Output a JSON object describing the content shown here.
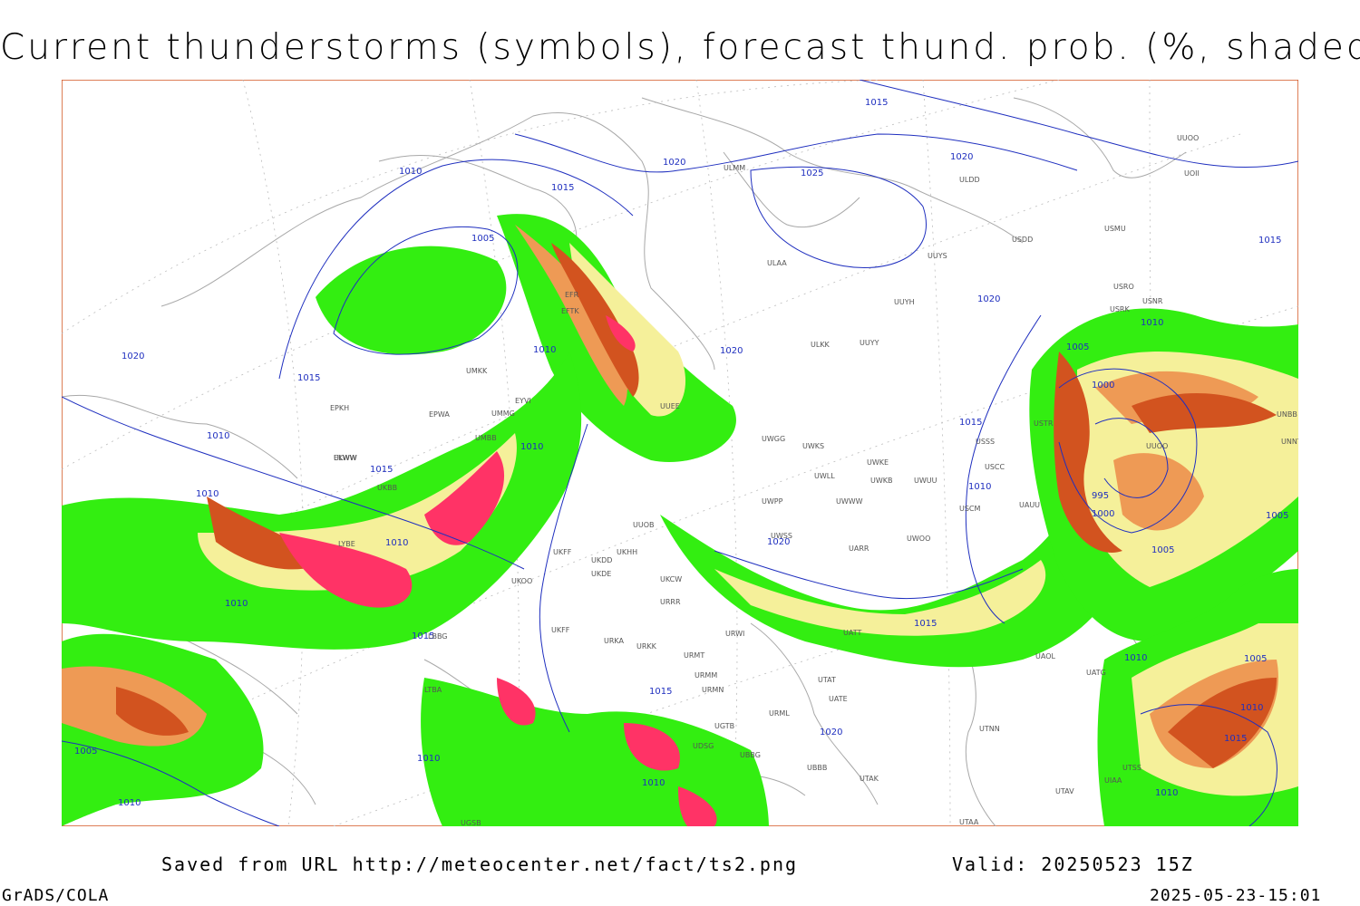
{
  "title": "Current thunderstorms (symbols), forecast thund. prob. (%, shaded)",
  "footer": {
    "saved": "Saved from URL http://meteocenter.net/fact/ts2.png",
    "valid": "Valid: 20250523 15Z",
    "credit": "GrADS/COLA",
    "timestamp": "2025-05-23-15:01"
  },
  "colors": {
    "isobar": "#1f2fbf",
    "coast": "#a8a8a8",
    "prob_low": "#33ee11",
    "prob_mid": "#f5f09a",
    "prob_high": "#ee9a55",
    "prob_higher": "#d2531f",
    "prob_max": "#ff3366"
  },
  "isobars": [
    {
      "label": "1015"
    },
    {
      "label": "1020"
    },
    {
      "label": "1025"
    },
    {
      "label": "1010"
    },
    {
      "label": "1005"
    },
    {
      "label": "1000"
    },
    {
      "label": "995"
    }
  ],
  "isobar_labels": [
    "1015",
    "1020",
    "1020",
    "1025",
    "1010",
    "1015",
    "1005",
    "1020",
    "1015",
    "1010",
    "1020",
    "1015",
    "1015",
    "1010",
    "1010",
    "1010",
    "1015",
    "1015",
    "1010",
    "1005",
    "1000",
    "995",
    "1000",
    "1005",
    "1010",
    "1015",
    "1020",
    "1010",
    "1005",
    "1010",
    "1010",
    "1010",
    "1010",
    "1015",
    "1005",
    "1005",
    "1010",
    "1015",
    "1010",
    "1020",
    "1015"
  ],
  "stations": [
    "EFR",
    "EFTK",
    "ULMM",
    "ULAA",
    "ULDD",
    "USDD",
    "UUYS",
    "UUYH",
    "USMU",
    "USRO",
    "USRK",
    "USNR",
    "UUOO",
    "UOII",
    "ULKK",
    "UUYY",
    "UMKK",
    "EYVI",
    "UMMG",
    "EPWA",
    "UMBB",
    "ULWW",
    "EPKH",
    "EKWW",
    "UKBB",
    "UUEE",
    "UWGG",
    "UWKS",
    "UWKE",
    "UWKB",
    "UWLL",
    "UWWW",
    "UWPP",
    "UWSS",
    "UWUU",
    "USCC",
    "USSS",
    "USTR",
    "USCM",
    "UAUU",
    "UUOO",
    "UUOB",
    "UKFF",
    "UKDD",
    "UKHH",
    "UKDE",
    "UKOO",
    "UKCW",
    "URRR",
    "URWI",
    "UKFF",
    "URKA",
    "URKK",
    "URMT",
    "URMM",
    "URMN",
    "UBBB",
    "UGTB",
    "UBBG",
    "UDSG",
    "UTAT",
    "UATE",
    "URML",
    "UTAK",
    "UTAV",
    "UTNN",
    "UTAA",
    "UAOL",
    "UATG",
    "UWOO",
    "UARR",
    "UATT",
    "LYBE",
    "LBBG",
    "LTBA",
    "UGSB",
    "UTSS",
    "UIAA",
    "UNBB",
    "UNNT"
  ],
  "chart_data": {
    "type": "map",
    "title": "Current thunderstorms (symbols), forecast thund. prob. (%, shaded)",
    "valid": "20250523 15Z",
    "layers": [
      "coastlines",
      "isobars (hPa)",
      "thunderstorm probability shading"
    ]
  }
}
